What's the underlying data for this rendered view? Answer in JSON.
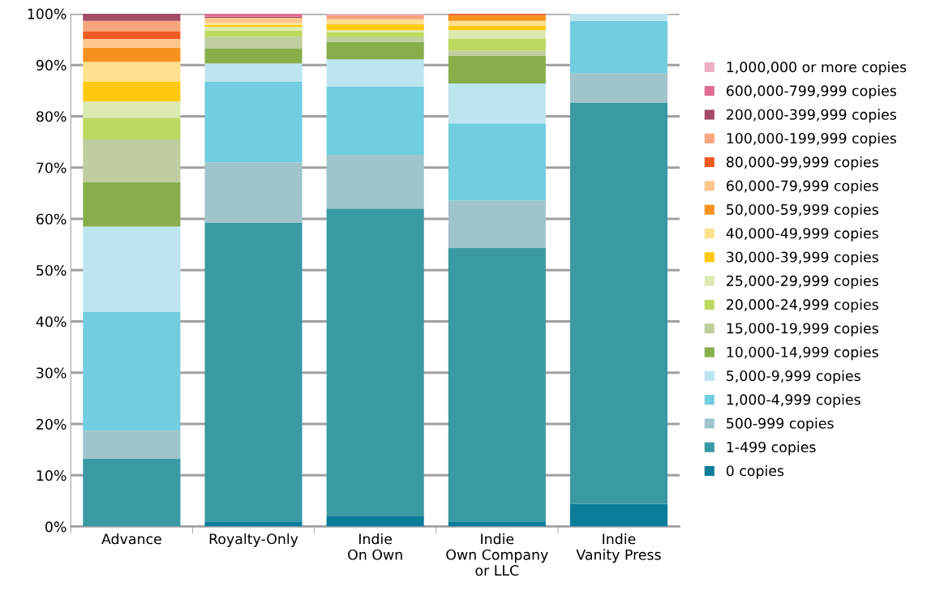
{
  "chart_data": {
    "type": "bar",
    "stacked": true,
    "categories": [
      "Advance",
      "Royalty-Only",
      "Indie\nOn Own",
      "Indie\nOwn Company\nor LLC",
      "Indie\nVanity Press"
    ],
    "ylim": [
      0,
      100
    ],
    "yticks": [
      {
        "value": 0,
        "label": "0%"
      },
      {
        "value": 10,
        "label": "10%"
      },
      {
        "value": 20,
        "label": "20%"
      },
      {
        "value": 30,
        "label": "30%"
      },
      {
        "value": 40,
        "label": "40%"
      },
      {
        "value": 50,
        "label": "50%"
      },
      {
        "value": 60,
        "label": "60%"
      },
      {
        "value": 70,
        "label": "70%"
      },
      {
        "value": 80,
        "label": "80%"
      },
      {
        "value": 90,
        "label": "90%"
      },
      {
        "value": 100,
        "label": "100%"
      }
    ],
    "grid": "y",
    "legend": "right",
    "series": [
      {
        "name": "0 copies",
        "color": "#0b7c9a",
        "values": [
          0,
          1.0,
          2.1,
          1.0,
          4.4
        ]
      },
      {
        "name": "1-499 copies",
        "color": "#3a9aa3",
        "values": [
          13.3,
          58.3,
          59.9,
          53.3,
          78.2
        ]
      },
      {
        "name": "500-999 copies",
        "color": "#9fc4cb",
        "values": [
          5.4,
          11.7,
          10.5,
          9.3,
          5.8
        ]
      },
      {
        "name": "1,000-4,999 copies",
        "color": "#71cde0",
        "values": [
          23.1,
          15.8,
          13.3,
          15.0,
          10.2
        ]
      },
      {
        "name": "5,000-9,999 copies",
        "color": "#bde5f0",
        "values": [
          16.7,
          3.5,
          5.3,
          7.8,
          1.4
        ]
      },
      {
        "name": "10,000-14,999 copies",
        "color": "#87ae4b",
        "values": [
          8.7,
          2.9,
          3.4,
          5.4,
          0
        ]
      },
      {
        "name": "15,000-19,999 copies",
        "color": "#bfcd9f",
        "values": [
          8.3,
          2.3,
          0.9,
          1.0,
          0
        ]
      },
      {
        "name": "20,000-24,999 copies",
        "color": "#bdd960",
        "values": [
          4.2,
          1.2,
          1.0,
          2.3,
          0
        ]
      },
      {
        "name": "25,000-29,999 copies",
        "color": "#dce9b0",
        "values": [
          3.2,
          0.7,
          0.4,
          1.7,
          0
        ]
      },
      {
        "name": "30,000-39,999 copies",
        "color": "#ffc90e",
        "values": [
          3.9,
          0.4,
          1.2,
          0.8,
          0
        ]
      },
      {
        "name": "40,000-49,999 copies",
        "color": "#fee08f",
        "values": [
          3.8,
          0.4,
          0.9,
          1.0,
          0
        ]
      },
      {
        "name": "50,000-59,999 copies",
        "color": "#f7921e",
        "values": [
          2.8,
          0,
          0,
          1.1,
          0
        ]
      },
      {
        "name": "60,000-79,999 copies",
        "color": "#fdc68a",
        "values": [
          1.7,
          1.0,
          0,
          0,
          0
        ]
      },
      {
        "name": "80,000-99,999 copies",
        "color": "#f15a22",
        "values": [
          1.4,
          0,
          0,
          0.3,
          0
        ]
      },
      {
        "name": "100,000-199,999 copies",
        "color": "#f7a57e",
        "values": [
          2.1,
          0,
          0.8,
          0,
          0
        ]
      },
      {
        "name": "200,000-399,999 copies",
        "color": "#a34c66",
        "values": [
          1.4,
          0.2,
          0,
          0,
          0
        ]
      },
      {
        "name": "600,000-799,999 copies",
        "color": "#e06b8f",
        "values": [
          0,
          0.8,
          0,
          0,
          0
        ]
      },
      {
        "name": "1,000,000 or more copies",
        "color": "#ecafc2",
        "values": [
          0,
          0,
          0.3,
          0,
          0
        ]
      }
    ]
  }
}
